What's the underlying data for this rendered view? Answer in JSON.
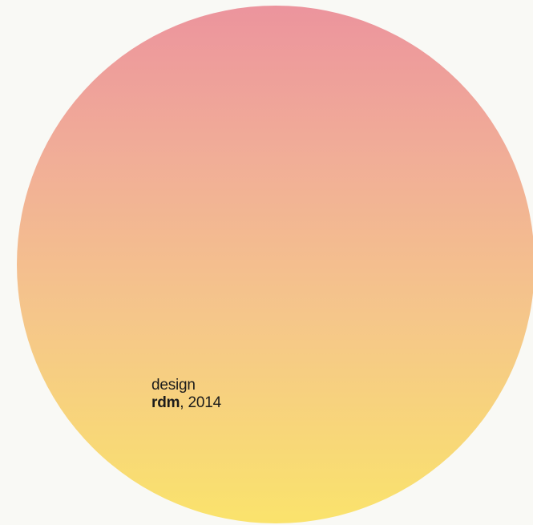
{
  "artwork": {
    "gradient_top_color": "#ec949d",
    "gradient_bottom_color": "#fae36c",
    "background_color": "#f9f9f5"
  },
  "credit": {
    "role": "design",
    "author": "rdm",
    "separator": ",",
    "year": "2014"
  }
}
